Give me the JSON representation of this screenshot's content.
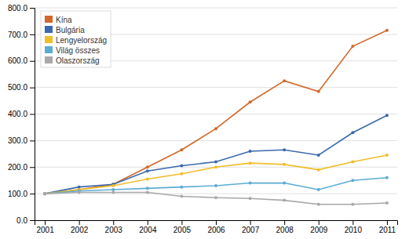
{
  "chart_data": {
    "type": "line",
    "x": [
      2001,
      2002,
      2003,
      2004,
      2005,
      2006,
      2007,
      2008,
      2009,
      2010,
      2011
    ],
    "xlim": [
      2000.7,
      2011.3
    ],
    "xticks": [
      2001,
      2002,
      2003,
      2004,
      2005,
      2006,
      2007,
      2008,
      2009,
      2010,
      2011
    ],
    "ylim": [
      0,
      800
    ],
    "yticks": [
      {
        "value": 0,
        "label": "0.0"
      },
      {
        "value": 100,
        "label": "100.0"
      },
      {
        "value": 200,
        "label": "200.0"
      },
      {
        "value": 300,
        "label": "300.0"
      },
      {
        "value": 400,
        "label": "400.0"
      },
      {
        "value": 500,
        "label": "500.0"
      },
      {
        "value": 600,
        "label": "600.0"
      },
      {
        "value": 700,
        "label": "700.0"
      },
      {
        "value": 800,
        "label": "800.0"
      }
    ],
    "grid": true,
    "legend": "upper left",
    "marker": "circle",
    "series": [
      {
        "name": "Kína",
        "color": "#D4682A",
        "values": [
          100,
          115,
          135,
          200,
          265,
          345,
          445,
          525,
          485,
          655,
          715
        ]
      },
      {
        "name": "Bulgária",
        "color": "#3A6AAD",
        "values": [
          100,
          125,
          135,
          185,
          205,
          220,
          260,
          265,
          245,
          330,
          395
        ]
      },
      {
        "name": "Lengyelország",
        "color": "#F0BE28",
        "values": [
          100,
          115,
          130,
          155,
          175,
          200,
          215,
          210,
          190,
          220,
          245
        ]
      },
      {
        "name": "Világ összes",
        "color": "#5BACD4",
        "values": [
          100,
          110,
          115,
          120,
          125,
          130,
          140,
          140,
          115,
          150,
          160
        ]
      },
      {
        "name": "Olaszország",
        "color": "#A8A8A8",
        "values": [
          100,
          105,
          105,
          105,
          90,
          85,
          82,
          75,
          60,
          60,
          65
        ]
      }
    ]
  }
}
